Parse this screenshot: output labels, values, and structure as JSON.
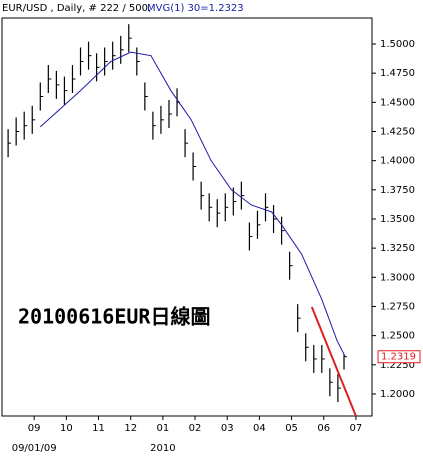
{
  "chart_data": {
    "type": "ohlc",
    "title": "EUR/USD , Daily, # 222 / 500, ",
    "annotation": "20100616EUR日線圖",
    "last_price": {
      "value": 1.2319,
      "label": "1.2319"
    },
    "bars": {
      "x": [
        -0.81,
        -0.56,
        -0.31,
        -0.06,
        0.19,
        0.44,
        0.69,
        0.94,
        1.19,
        1.44,
        1.69,
        1.94,
        2.19,
        2.44,
        2.69,
        2.94,
        3.19,
        3.44,
        3.69,
        3.94,
        4.19,
        4.44,
        4.69,
        4.94,
        5.19,
        5.44,
        5.69,
        5.94,
        6.19,
        6.44,
        6.69,
        6.94,
        7.19,
        7.44,
        7.69,
        7.94,
        8.19,
        8.44,
        8.69,
        8.94,
        9.19,
        9.44,
        9.63
      ],
      "high": [
        1.427,
        1.437,
        1.442,
        1.447,
        1.467,
        1.482,
        1.477,
        1.472,
        1.482,
        1.497,
        1.502,
        1.492,
        1.497,
        1.502,
        1.507,
        1.517,
        1.497,
        1.467,
        1.442,
        1.447,
        1.452,
        1.462,
        1.427,
        1.407,
        1.382,
        1.372,
        1.367,
        1.372,
        1.377,
        1.382,
        1.347,
        1.357,
        1.372,
        1.362,
        1.352,
        1.322,
        1.277,
        1.252,
        1.242,
        1.242,
        1.222,
        1.217,
        1.2339
      ],
      "low": [
        1.403,
        1.413,
        1.418,
        1.423,
        1.443,
        1.458,
        1.453,
        1.448,
        1.458,
        1.473,
        1.478,
        1.468,
        1.473,
        1.478,
        1.483,
        1.493,
        1.473,
        1.443,
        1.418,
        1.423,
        1.428,
        1.438,
        1.403,
        1.383,
        1.358,
        1.348,
        1.343,
        1.348,
        1.353,
        1.358,
        1.323,
        1.333,
        1.348,
        1.338,
        1.328,
        1.298,
        1.253,
        1.228,
        1.218,
        1.218,
        1.198,
        1.193,
        1.2209
      ],
      "close": [
        1.415,
        1.425,
        1.43,
        1.435,
        1.455,
        1.47,
        1.465,
        1.46,
        1.47,
        1.485,
        1.49,
        1.48,
        1.485,
        1.49,
        1.495,
        1.505,
        1.485,
        1.455,
        1.43,
        1.435,
        1.44,
        1.45,
        1.415,
        1.395,
        1.37,
        1.36,
        1.355,
        1.36,
        1.365,
        1.37,
        1.335,
        1.345,
        1.36,
        1.35,
        1.34,
        1.31,
        1.265,
        1.24,
        1.23,
        1.23,
        1.21,
        1.205,
        1.2319
      ]
    },
    "series": [
      {
        "name": "MVG(1) 30=1.2323",
        "color": "#1a1aa8",
        "x": [
          0.19,
          1.44,
          2.38,
          3,
          3.63,
          4.25,
          4.88,
          5.5,
          6.13,
          6.75,
          7.38,
          7.69,
          8.31,
          8.94,
          9.41,
          9.66
        ],
        "values": [
          1.429,
          1.46,
          1.485,
          1.493,
          1.49,
          1.46,
          1.435,
          1.4,
          1.375,
          1.362,
          1.356,
          1.345,
          1.32,
          1.281,
          1.246,
          1.2323
        ]
      },
      {
        "color": "#e02020",
        "x": [
          8.63,
          10
        ],
        "values": [
          1.2745,
          1.1811
        ]
      }
    ],
    "xlim": [
      -1,
      10.5
    ],
    "ylim": [
      1.1811,
      1.5223
    ],
    "xticks": [
      {
        "value": 0,
        "label": "09"
      },
      {
        "value": 1,
        "label": "10"
      },
      {
        "value": 2,
        "label": "11"
      },
      {
        "value": 3,
        "label": "12"
      },
      {
        "value": 4,
        "label": "01"
      },
      {
        "value": 5,
        "label": "02"
      },
      {
        "value": 6,
        "label": "03"
      },
      {
        "value": 7,
        "label": "04"
      },
      {
        "value": 8,
        "label": "05"
      },
      {
        "value": 9,
        "label": "06"
      },
      {
        "value": 10,
        "label": "07"
      }
    ],
    "xlabels2": [
      {
        "value": 0,
        "label": "09/01/09"
      },
      {
        "value": 4,
        "label": "2010"
      }
    ],
    "yticks": [
      {
        "value": 1.2,
        "label": "1.2000"
      },
      {
        "value": 1.225,
        "label": "1.2250"
      },
      {
        "value": 1.25,
        "label": "1.2500"
      },
      {
        "value": 1.275,
        "label": "1.2750"
      },
      {
        "value": 1.3,
        "label": "1.3000"
      },
      {
        "value": 1.325,
        "label": "1.3250"
      },
      {
        "value": 1.35,
        "label": "1.3500"
      },
      {
        "value": 1.375,
        "label": "1.3750"
      },
      {
        "value": 1.4,
        "label": "1.4000"
      },
      {
        "value": 1.425,
        "label": "1.4250"
      },
      {
        "value": 1.45,
        "label": "1.4500"
      },
      {
        "value": 1.475,
        "label": "1.4750"
      },
      {
        "value": 1.5,
        "label": "1.5000"
      }
    ]
  }
}
